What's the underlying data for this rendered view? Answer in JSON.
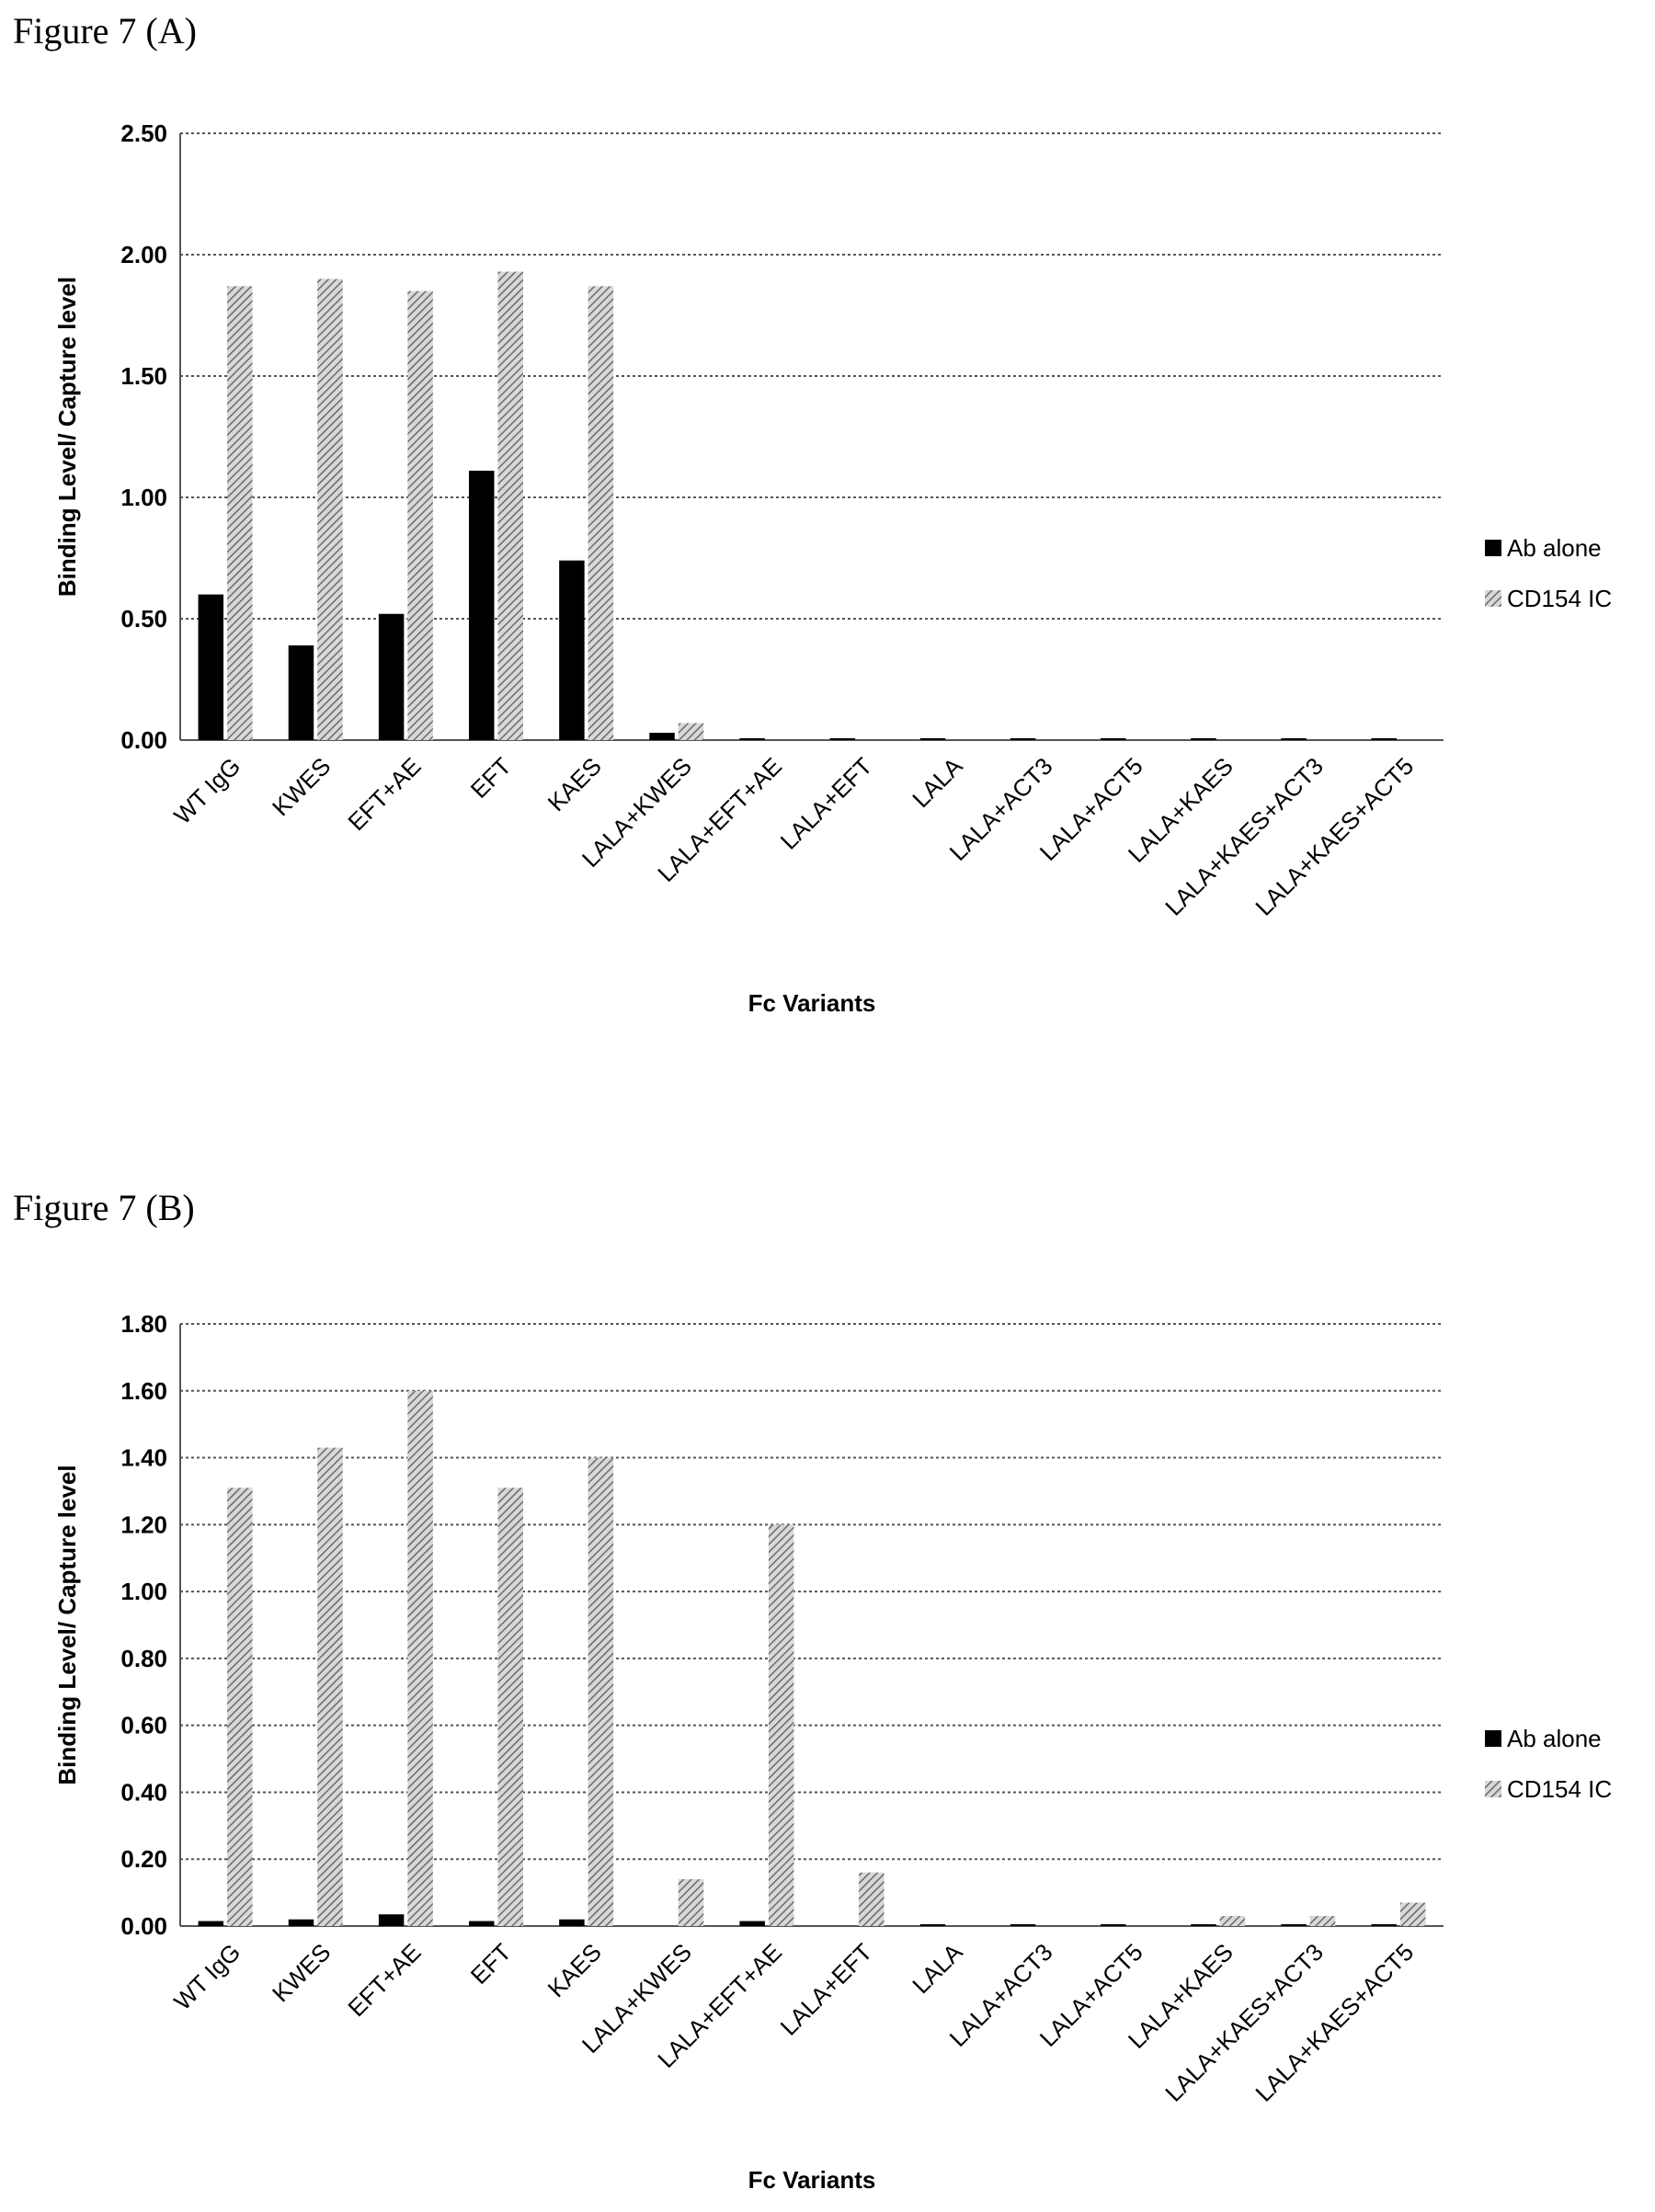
{
  "figures": [
    {
      "title": "Figure 7 (A)"
    },
    {
      "title": "Figure 7 (B)"
    }
  ],
  "chart_data": [
    {
      "type": "bar",
      "title": "",
      "xlabel": "Fc Variants",
      "ylabel": "Binding Level/ Capture level",
      "ylim": [
        0,
        2.5
      ],
      "yticks": [
        "0.00",
        "0.50",
        "1.00",
        "1.50",
        "2.00",
        "2.50"
      ],
      "grid": true,
      "legend": "right",
      "categories": [
        "WT IgG",
        "KWES",
        "EFT+AE",
        "EFT",
        "KAES",
        "LALA+KWES",
        "LALA+EFT+AE",
        "LALA+EFT",
        "LALA",
        "LALA+ACT3",
        "LALA+ACT5",
        "LALA+KAES",
        "LALA+KAES+ACT3",
        "LALA+KAES+ACT5"
      ],
      "series": [
        {
          "name": "Ab alone",
          "color": "#000000",
          "pattern": "solid",
          "values": [
            0.6,
            0.39,
            0.52,
            1.11,
            0.74,
            0.03,
            0.005,
            0.005,
            0.005,
            0.005,
            0.005,
            0.005,
            0.005,
            0.005
          ]
        },
        {
          "name": "CD154 IC",
          "color": "#9a9a9a",
          "pattern": "hatched",
          "values": [
            1.87,
            1.9,
            1.85,
            1.93,
            1.87,
            0.07,
            0,
            0,
            0,
            0,
            0,
            0,
            0,
            0
          ]
        }
      ]
    },
    {
      "type": "bar",
      "title": "",
      "xlabel": "Fc Variants",
      "ylabel": "Binding Level/ Capture level",
      "ylim": [
        0,
        1.8
      ],
      "yticks": [
        "0.00",
        "0.20",
        "0.40",
        "0.60",
        "0.80",
        "1.00",
        "1.20",
        "1.40",
        "1.60",
        "1.80"
      ],
      "grid": true,
      "legend": "right",
      "categories": [
        "WT IgG",
        "KWES",
        "EFT+AE",
        "EFT",
        "KAES",
        "LALA+KWES",
        "LALA+EFT+AE",
        "LALA+EFT",
        "LALA",
        "LALA+ACT3",
        "LALA+ACT5",
        "LALA+KAES",
        "LALA+KAES+ACT3",
        "LALA+KAES+ACT5"
      ],
      "series": [
        {
          "name": "Ab alone",
          "color": "#000000",
          "pattern": "solid",
          "values": [
            0.015,
            0.02,
            0.035,
            0.015,
            0.02,
            0,
            0.015,
            0,
            0.005,
            0.005,
            0.005,
            0.005,
            0.005,
            0.005
          ]
        },
        {
          "name": "CD154 IC",
          "color": "#9a9a9a",
          "pattern": "hatched",
          "values": [
            1.31,
            1.43,
            1.6,
            1.31,
            1.4,
            0.14,
            1.2,
            0.16,
            0,
            0,
            0,
            0.03,
            0.03,
            0.07
          ]
        }
      ]
    }
  ]
}
